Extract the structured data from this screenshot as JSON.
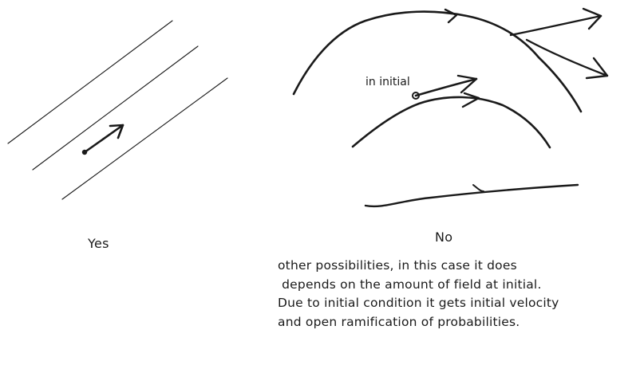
{
  "left_panel": {
    "caption": "Yes"
  },
  "right_panel": {
    "caption": "No",
    "point_label": "in initial"
  },
  "note": {
    "lines": [
      "other possibilities, in this case it does",
      " depends on the amount of field at initial.",
      "Due to initial condition it gets initial velocity",
      "and open ramification of probabilities."
    ]
  },
  "colors": {
    "ink": "#1a1a1a",
    "background": "#ffffff"
  }
}
